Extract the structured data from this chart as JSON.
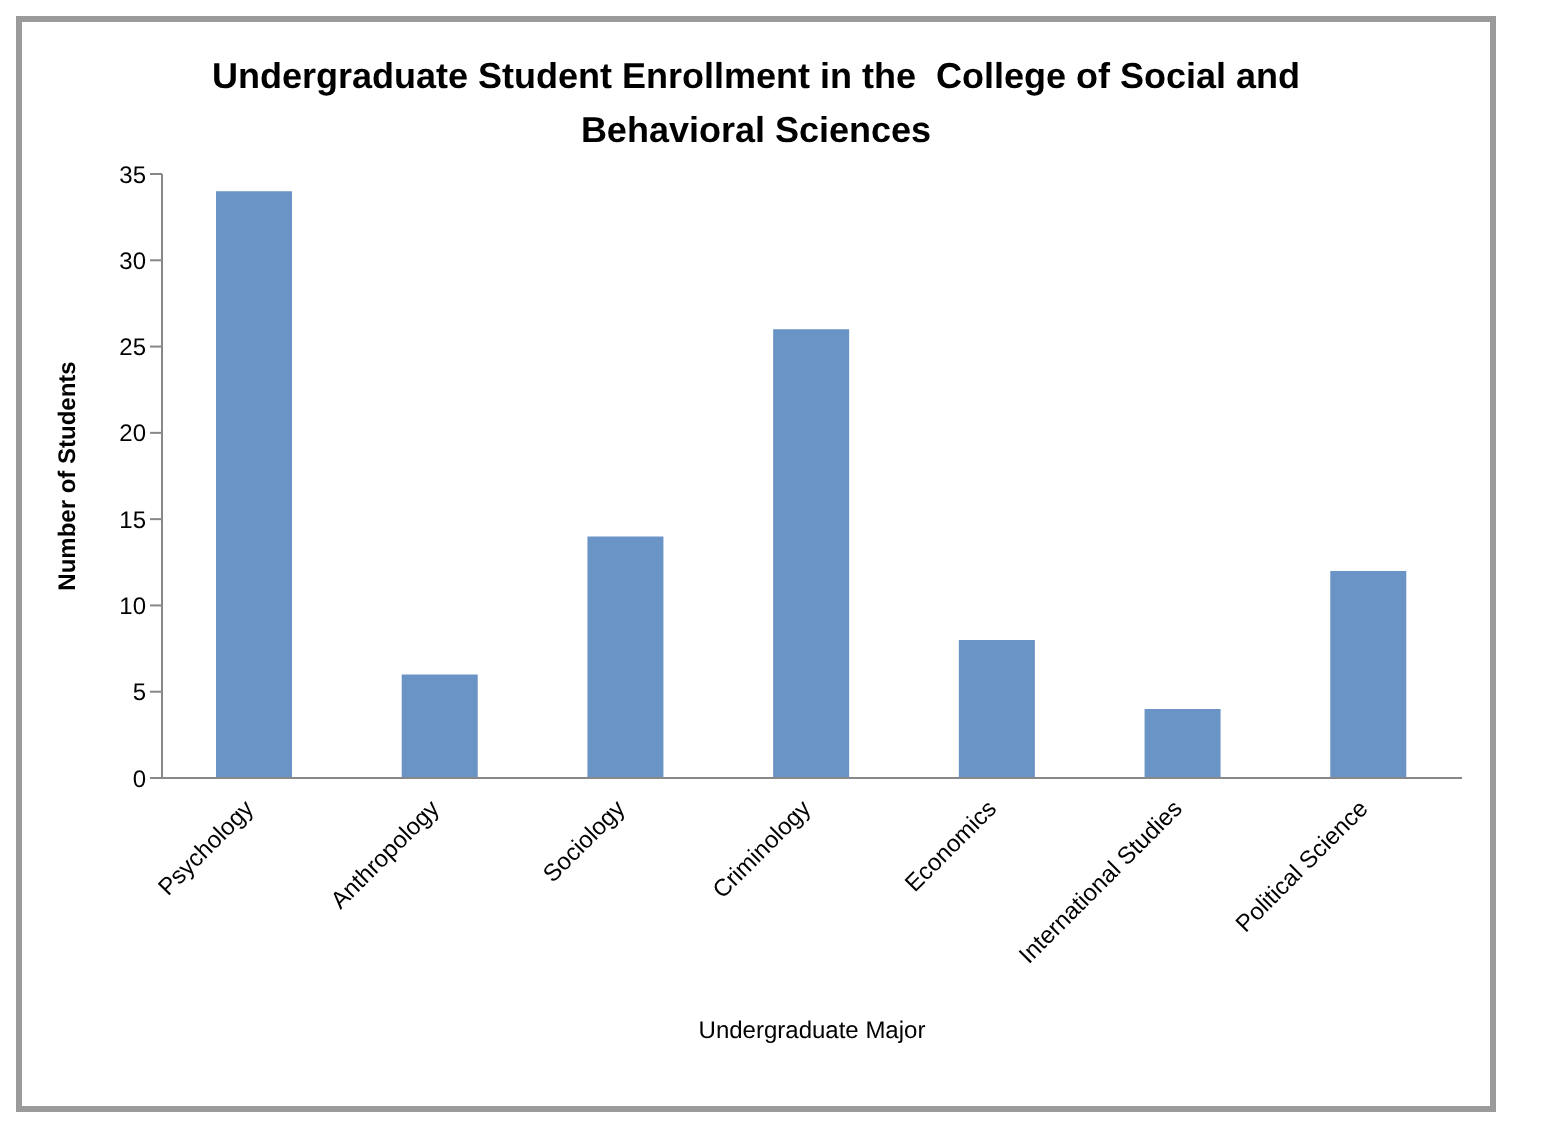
{
  "chart_data": {
    "type": "bar",
    "title": "Undergraduate Student Enrollment in the  College of Social and Behavioral Sciences",
    "xlabel": "Undergraduate Major",
    "ylabel": "Number of Students",
    "categories": [
      "Psychology",
      "Anthropology",
      "Sociology",
      "Criminology",
      "Economics",
      "International Studies",
      "Political Science"
    ],
    "values": [
      34,
      6,
      14,
      26,
      8,
      4,
      12
    ],
    "color": "#6a93c6",
    "ylim": [
      0,
      35
    ],
    "yticks": [
      0,
      5,
      10,
      15,
      20,
      25,
      30,
      35
    ]
  }
}
